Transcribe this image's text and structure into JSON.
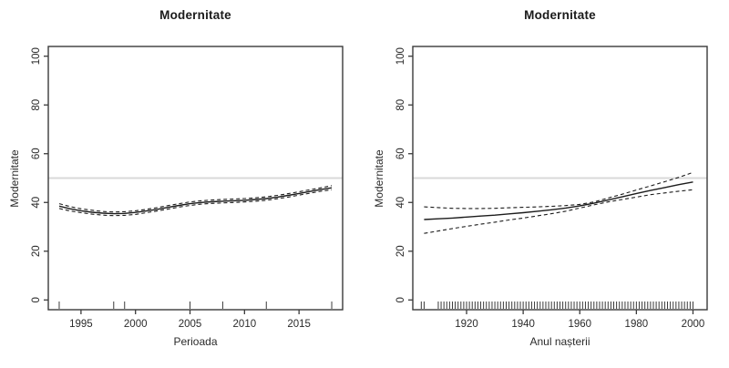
{
  "colors": {
    "line": "#1c1c1c",
    "axis": "#3a3a3a",
    "reference": "#d9d9d9",
    "background": "#ffffff",
    "text": "#2b2b2b"
  },
  "chart_data": [
    {
      "type": "line",
      "title": "Modernitate",
      "xlabel": "Perioada",
      "ylabel": "Modernitate",
      "xlim": [
        1992,
        2019
      ],
      "ylim": [
        -4,
        104
      ],
      "xticks": [
        1995,
        2000,
        2005,
        2010,
        2015
      ],
      "yticks": [
        0,
        20,
        40,
        60,
        80,
        100
      ],
      "grid": false,
      "legend": "none",
      "reference_line_y": 50,
      "x": [
        1993,
        1994,
        1995,
        1996,
        1997,
        1998,
        1999,
        2000,
        2001,
        2002,
        2003,
        2004,
        2005,
        2006,
        2007,
        2008,
        2009,
        2010,
        2011,
        2012,
        2013,
        2014,
        2015,
        2016,
        2017,
        2018
      ],
      "series": [
        {
          "name": "estimate",
          "style": "solid",
          "values": [
            38.5,
            37.4,
            36.6,
            36.0,
            35.6,
            35.4,
            35.5,
            35.9,
            36.5,
            37.2,
            38.0,
            38.8,
            39.5,
            40.0,
            40.3,
            40.5,
            40.7,
            40.9,
            41.2,
            41.6,
            42.2,
            42.9,
            43.7,
            44.5,
            45.3,
            46.0
          ]
        },
        {
          "name": "upper-ci",
          "style": "dashed",
          "values": [
            39.5,
            38.3,
            37.4,
            36.8,
            36.3,
            36.1,
            36.2,
            36.6,
            37.2,
            37.9,
            38.7,
            39.5,
            40.2,
            40.7,
            41.0,
            41.2,
            41.4,
            41.6,
            41.9,
            42.3,
            42.9,
            43.6,
            44.4,
            45.2,
            46.0,
            46.9
          ]
        },
        {
          "name": "lower-ci",
          "style": "dashed",
          "values": [
            37.5,
            36.5,
            35.8,
            35.2,
            34.8,
            34.6,
            34.7,
            35.1,
            35.8,
            36.5,
            37.3,
            38.1,
            38.8,
            39.3,
            39.6,
            39.8,
            40.0,
            40.2,
            40.5,
            40.9,
            41.5,
            42.2,
            43.0,
            43.8,
            44.6,
            45.2
          ]
        }
      ],
      "rug_x": [
        1993,
        1998,
        1999,
        2005,
        2008,
        2012,
        2018
      ]
    },
    {
      "type": "line",
      "title": "Modernitate",
      "xlabel": "Anul nașterii",
      "ylabel": "Modernitate",
      "xlim": [
        1901,
        2005
      ],
      "ylim": [
        -4,
        104
      ],
      "xticks": [
        1920,
        1940,
        1960,
        1980,
        2000
      ],
      "yticks": [
        0,
        20,
        40,
        60,
        80,
        100
      ],
      "grid": false,
      "legend": "none",
      "reference_line_y": 50,
      "x": [
        1905,
        1910,
        1915,
        1920,
        1925,
        1930,
        1935,
        1940,
        1945,
        1950,
        1955,
        1960,
        1965,
        1970,
        1975,
        1980,
        1985,
        1990,
        1995,
        2000
      ],
      "series": [
        {
          "name": "estimate",
          "style": "solid",
          "values": [
            33.0,
            33.3,
            33.6,
            34.0,
            34.4,
            34.8,
            35.3,
            35.8,
            36.4,
            37.0,
            37.7,
            38.6,
            39.7,
            41.0,
            42.3,
            43.7,
            44.9,
            46.1,
            47.3,
            48.4
          ]
        },
        {
          "name": "upper-ci",
          "style": "dashed",
          "values": [
            38.2,
            37.9,
            37.6,
            37.5,
            37.5,
            37.6,
            37.8,
            38.0,
            38.2,
            38.4,
            38.7,
            39.2,
            40.2,
            41.8,
            43.4,
            45.1,
            46.8,
            48.5,
            50.3,
            52.3
          ]
        },
        {
          "name": "lower-ci",
          "style": "dashed",
          "values": [
            27.3,
            28.3,
            29.3,
            30.2,
            31.1,
            31.9,
            32.8,
            33.6,
            34.5,
            35.4,
            36.4,
            37.7,
            39.0,
            40.2,
            41.2,
            42.2,
            43.2,
            43.9,
            44.6,
            45.2
          ]
        }
      ],
      "rug_x": [
        1904,
        1905
      ],
      "rug_range": [
        1910,
        2000
      ]
    }
  ]
}
